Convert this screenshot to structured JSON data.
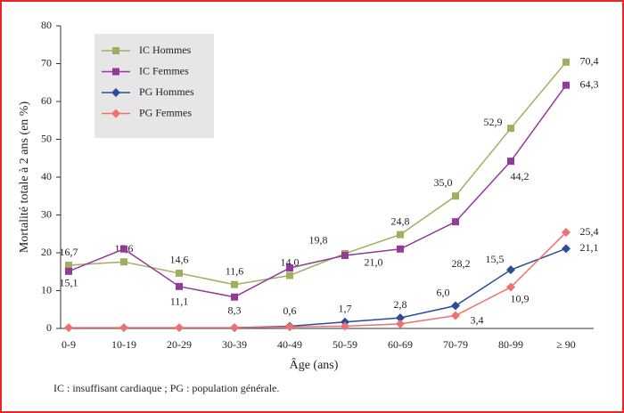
{
  "chart_data": {
    "type": "line",
    "y_label": "Mortalité totale à 2 ans (en %)",
    "x_label": "Âge (ans)",
    "note": "IC : insuffisant cardiaque ; PG : population générale.",
    "categories": [
      "0-9",
      "10-19",
      "20-29",
      "30-39",
      "40-49",
      "50-59",
      "60-69",
      "70-79",
      "80-99",
      "≥ 90"
    ],
    "ylim": [
      0,
      80
    ],
    "yticks": [
      0,
      10,
      20,
      30,
      40,
      50,
      60,
      70,
      80
    ],
    "series": [
      {
        "name": "IC Hommes",
        "color": "#a3ad5f",
        "marker": "square",
        "values": [
          16.7,
          17.6,
          14.6,
          11.6,
          14.0,
          19.8,
          24.8,
          35.0,
          52.9,
          70.4
        ],
        "value_labels": [
          "16,7",
          "17,6",
          "14,6",
          "11,6",
          "14,0",
          "19,8",
          "24,8",
          "35,0",
          "52,9",
          "70,4"
        ]
      },
      {
        "name": "IC Femmes",
        "color": "#93399a",
        "marker": "square",
        "values": [
          15.1,
          21.0,
          11.1,
          8.3,
          16.0,
          19.3,
          21.0,
          28.2,
          44.2,
          64.3
        ],
        "value_labels": [
          "15,1",
          null,
          "11,1",
          "8,3",
          null,
          null,
          "21,0",
          "28,2",
          "44,2",
          "64,3"
        ]
      },
      {
        "name": "PG Hommes",
        "color": "#2b4b9b",
        "marker": "diamond",
        "values": [
          null,
          null,
          null,
          0.2,
          0.6,
          1.7,
          2.8,
          6.0,
          15.5,
          21.1
        ],
        "value_labels": [
          null,
          null,
          null,
          null,
          "0,6",
          "1,7",
          "2,8",
          "6,0",
          "15,5",
          "21,1"
        ]
      },
      {
        "name": "PG Femmes",
        "color": "#f07070",
        "marker": "diamond",
        "values": [
          0.2,
          0.2,
          0.2,
          0.2,
          0.4,
          0.6,
          1.2,
          3.4,
          10.9,
          25.4
        ],
        "value_labels": [
          null,
          null,
          null,
          null,
          null,
          null,
          null,
          "3,4",
          "10,9",
          "25,4"
        ]
      }
    ]
  }
}
